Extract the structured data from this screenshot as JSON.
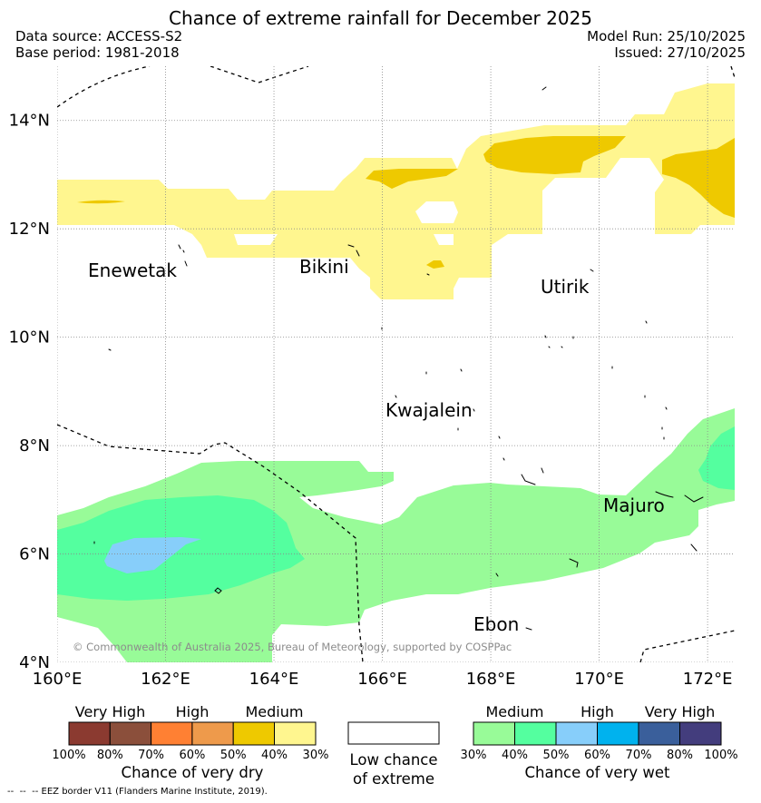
{
  "title": "Chance of extreme rainfall for December 2025",
  "header": {
    "data_source": "Data source: ACCESS-S2",
    "base_period": "Base period: 1981-2018",
    "model_run": "Model Run: 25/10/2025",
    "issued": "Issued: 27/10/2025"
  },
  "map": {
    "extent": {
      "lon_min": 160,
      "lon_max": 172.5,
      "lat_min": 4,
      "lat_max": 15
    },
    "lat_ticks": [
      "14°N",
      "12°N",
      "10°N",
      "8°N",
      "6°N",
      "4°N"
    ],
    "lon_ticks": [
      "160°E",
      "162°E",
      "164°E",
      "166°E",
      "168°E",
      "170°E",
      "172°E"
    ],
    "places": [
      "Enewetak",
      "Bikini",
      "Utirik",
      "Kwajalein",
      "Majuro",
      "Ebon"
    ],
    "copyright": "© Commonwealth of Australia 2025, Bureau of Meteorology, supported by COSPPac",
    "grid": true
  },
  "legend": {
    "dry": {
      "levels": [
        "Very High",
        "High",
        "Medium"
      ],
      "ticks": [
        "100%",
        "80%",
        "70%",
        "60%",
        "50%",
        "40%",
        "30%"
      ],
      "colors": [
        "#8b3a30",
        "#8b4f3b",
        "#ff8033",
        "#ee9a4b",
        "#eec900",
        "#fff68f"
      ],
      "label": "Chance of very dry"
    },
    "neutral": {
      "line1": "Low chance",
      "line2": "of extreme",
      "color": "#ffffff"
    },
    "wet": {
      "levels": [
        "Medium",
        "High",
        "Very High"
      ],
      "ticks": [
        "30%",
        "40%",
        "50%",
        "60%",
        "70%",
        "80%",
        "100%"
      ],
      "colors": [
        "#98fb98",
        "#54ff9f",
        "#87cefa",
        "#00b2ee",
        "#3a5f9b",
        "#433d7d"
      ],
      "label": "Chance of very wet"
    }
  },
  "footer": "--  --  -- EEZ border V11 (Flanders Marine Institute, 2019)."
}
